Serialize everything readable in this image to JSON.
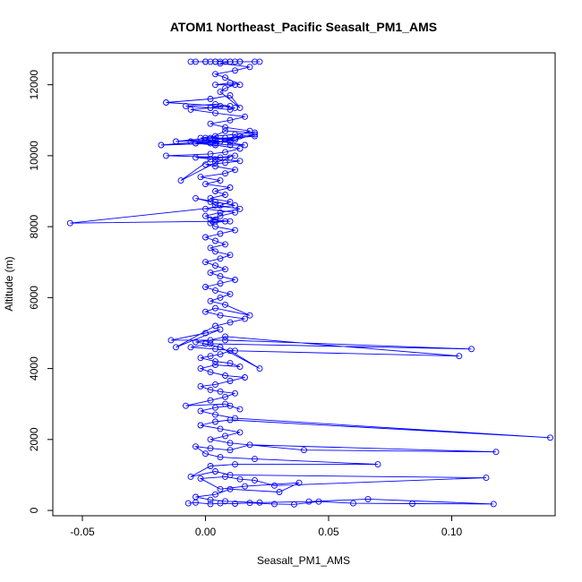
{
  "chart_data": {
    "type": "line",
    "title": "ATOM1 Northeast_Pacific Seasalt_PM1_AMS",
    "xlabel": "Seasalt_PM1_AMS",
    "ylabel": "Altitude (m)",
    "xlim": [
      -0.062,
      0.142
    ],
    "ylim": [
      -150,
      12900
    ],
    "x_ticks": [
      -0.05,
      0.0,
      0.05,
      0.1
    ],
    "x_tick_labels": [
      "-0.05",
      "0.00",
      "0.05",
      "0.10"
    ],
    "y_ticks": [
      0,
      2000,
      4000,
      6000,
      8000,
      10000,
      12000
    ],
    "y_tick_labels": [
      "0",
      "2000",
      "4000",
      "6000",
      "8000",
      "10000",
      "12000"
    ],
    "grid": false,
    "legend": "none",
    "series_color": "#0000ff",
    "markers": "open-circle",
    "series": [
      {
        "x": [
          -0.007,
          -0.004,
          0.002,
          0.006,
          0.012,
          0.018,
          0.028,
          0.036,
          0.046,
          0.06,
          0.084,
          0.117,
          0.066,
          0.042,
          0.022,
          0.008,
          0.002,
          -0.004,
          0.004,
          0.01,
          0.03,
          0.038,
          0.016,
          0.006,
          -0.002,
          0.008,
          0.014,
          0.02,
          0.028,
          0.114,
          0.01,
          0.004,
          -0.006,
          0.002,
          0.012,
          0.07,
          0.02,
          0.006,
          0.0,
          -0.004,
          0.002,
          0.01,
          0.018,
          0.118,
          0.04,
          0.01,
          0.002,
          0.008,
          0.014,
          0.006,
          -0.002,
          0.004,
          0.01,
          0.14,
          0.012,
          0.004,
          -0.002,
          0.004,
          0.01,
          0.014,
          0.008,
          -0.008,
          0.002,
          0.008,
          0.012,
          0.006,
          0.002,
          -0.002,
          0.004,
          0.01,
          0.016,
          0.008,
          0.002,
          -0.002,
          0.004,
          0.014,
          0.01,
          0.004,
          -0.002,
          0.002,
          0.006,
          0.01,
          0.022,
          0.006,
          0.0,
          -0.004,
          0.002,
          0.008,
          0.103,
          0.012,
          0.004,
          -0.006,
          0.002,
          0.108,
          0.008,
          -0.014,
          0.0,
          0.006,
          -0.012,
          0.004,
          0.01,
          0.016,
          0.006,
          0.0,
          0.004,
          0.018,
          0.008,
          0.002,
          0.006,
          0.01,
          0.004,
          0.0,
          0.006,
          0.012,
          0.006,
          0.002,
          0.008,
          0.004,
          0.0,
          0.006,
          0.01,
          0.004,
          0.002,
          0.008,
          0.004,
          0.0,
          0.006,
          0.012,
          0.004,
          0.002,
          0.008,
          0.004,
          0.0,
          0.006,
          0.014,
          0.004,
          0.002,
          -0.004,
          0.004,
          0.012,
          -0.055,
          0.004,
          0.01,
          0.002,
          0.006,
          0.012,
          0.0,
          0.006,
          0.01,
          0.002,
          0.008,
          0.004,
          0.01,
          0.0,
          0.006,
          -0.002,
          0.008,
          0.012,
          0.004,
          0.0,
          0.008,
          0.014,
          0.004,
          -0.004,
          0.006,
          0.012,
          0.002,
          -0.01,
          0.004,
          0.01,
          -0.016,
          0.002,
          0.008,
          0.014,
          0.004,
          -0.004,
          0.006,
          0.012,
          0.0,
          0.008,
          0.02,
          0.004,
          -0.006,
          0.002,
          0.01,
          0.016,
          0.006,
          -0.002,
          0.004,
          0.012,
          0.02,
          0.008,
          0.002,
          -0.012,
          0.004,
          0.014,
          0.02,
          0.01,
          0.0,
          -0.018,
          0.004,
          0.012,
          0.018,
          0.008,
          0.002,
          0.01,
          0.016,
          0.004,
          -0.006,
          0.002,
          0.01,
          0.004,
          -0.008,
          0.002,
          0.01,
          0.012,
          0.006,
          -0.016,
          0.002,
          0.01,
          0.014,
          0.006,
          0.008,
          0.012,
          0.004,
          0.01,
          0.014,
          0.008,
          0.004,
          0.012,
          0.018,
          0.006,
          0.01,
          0.0,
          0.006,
          0.014,
          0.02,
          0.008,
          0.0,
          -0.004,
          0.004,
          0.012,
          0.022,
          0.01,
          0.002,
          -0.006,
          0.004,
          0.014
        ],
        "y": [
          200,
          220,
          180,
          200,
          190,
          210,
          180,
          170,
          250,
          200,
          190,
          180,
          320,
          250,
          220,
          260,
          300,
          380,
          450,
          600,
          520,
          780,
          680,
          600,
          900,
          950,
          880,
          850,
          700,
          920,
          1000,
          1100,
          950,
          1250,
          1300,
          1300,
          1450,
          1500,
          1600,
          1800,
          1750,
          1700,
          1850,
          1650,
          1700,
          1900,
          2000,
          2100,
          2200,
          2300,
          2400,
          2500,
          2550,
          2050,
          2600,
          2700,
          2800,
          2900,
          2950,
          2850,
          3000,
          2950,
          3100,
          3200,
          3300,
          3350,
          3400,
          3500,
          3550,
          3650,
          3750,
          3800,
          3900,
          4000,
          4100,
          4050,
          4150,
          4200,
          4300,
          4350,
          4400,
          4500,
          4000,
          4600,
          4700,
          4750,
          4800,
          4900,
          4350,
          4500,
          4550,
          4600,
          4700,
          4550,
          4800,
          4800,
          5000,
          5100,
          4600,
          5200,
          5300,
          5400,
          5500,
          5600,
          5700,
          5500,
          5800,
          5900,
          6000,
          6100,
          6200,
          6300,
          6400,
          6500,
          6600,
          6700,
          6800,
          6900,
          7000,
          7100,
          7200,
          7300,
          7400,
          7500,
          7600,
          7700,
          7800,
          7900,
          8000,
          8100,
          8150,
          8200,
          8300,
          8400,
          8500,
          8600,
          8700,
          8800,
          8700,
          8600,
          8100,
          8150,
          8150,
          8200,
          8300,
          8400,
          8500,
          8600,
          8700,
          8800,
          8900,
          9000,
          9100,
          9200,
          9300,
          9400,
          9500,
          9600,
          9700,
          9750,
          9800,
          9850,
          9900,
          9950,
          9950,
          10000,
          9900,
          9300,
          9800,
          9950,
          10000,
          10050,
          10100,
          10200,
          10300,
          10350,
          10400,
          10450,
          10500,
          10500,
          10550,
          10450,
          10400,
          10350,
          10300,
          10300,
          10400,
          10500,
          10550,
          10600,
          10650,
          10700,
          10500,
          10400,
          10450,
          10550,
          10600,
          10400,
          10400,
          10300,
          10350,
          10500,
          10700,
          10800,
          10900,
          11000,
          11100,
          11200,
          11300,
          11350,
          11400,
          11450,
          11400,
          11350,
          11300,
          11350,
          11400,
          11500,
          11600,
          11700,
          11350,
          11800,
          11900,
          12000,
          12000,
          12050,
          12000,
          12200,
          12300,
          12400,
          12500,
          12600,
          12650,
          12650,
          12650,
          12650,
          12650,
          12650,
          12650,
          12650,
          12650,
          12650,
          12650,
          12650,
          12650,
          12650,
          12650,
          12650
        ]
      }
    ]
  }
}
